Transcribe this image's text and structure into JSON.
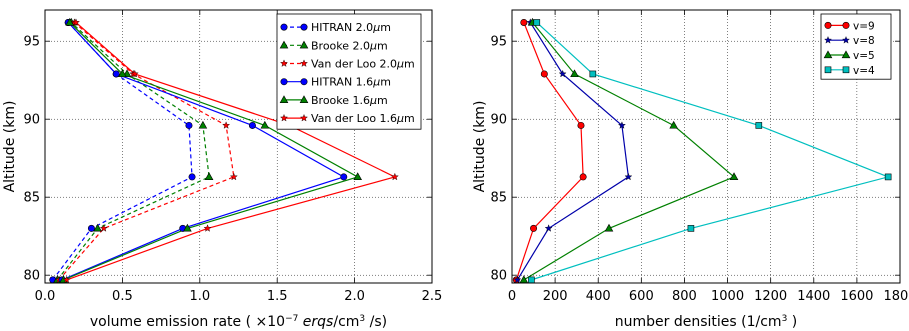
{
  "chart_data": [
    {
      "type": "line",
      "xlabel_html": "volume emission rate ( ×10<tspan baseline-shift=\"super\" font-size=\"9\">−7</tspan> <tspan font-style=\"italic\">erqs</tspan>/cm<tspan baseline-shift=\"super\" font-size=\"9\">3</tspan> /s)",
      "xlabel": "volume emission rate ( ×10−7 erqs/cm3 /s)",
      "ylabel": "Altitude (km)",
      "xlim": [
        0,
        2.5
      ],
      "ylim": [
        79.5,
        97
      ],
      "xticks": [
        0.0,
        0.5,
        1.0,
        1.5,
        2.0,
        2.5
      ],
      "xtick_labels": [
        "0.0",
        "0.5",
        "1.0",
        "1.5",
        "2.0",
        "2.5"
      ],
      "yticks": [
        80,
        85,
        90,
        95
      ],
      "ytick_labels": [
        "80",
        "85",
        "90",
        "95"
      ],
      "grid": true,
      "legend_position": "top-right",
      "series": [
        {
          "name": "HITRAN 2.0μm",
          "legend_base": "HITRAN 2.0",
          "color": "#0000ff",
          "marker": "circle",
          "dashed": true,
          "x": [
            0.05,
            0.3,
            0.95,
            0.93,
            0.46,
            0.15
          ],
          "y": [
            79.7,
            83.0,
            86.3,
            89.6,
            92.9,
            96.2
          ]
        },
        {
          "name": "Brooke 2.0μm",
          "legend_base": "Brooke 2.0",
          "color": "#008000",
          "marker": "triangle",
          "dashed": true,
          "x": [
            0.08,
            0.34,
            1.06,
            1.02,
            0.53,
            0.17
          ],
          "y": [
            79.7,
            83.0,
            86.3,
            89.6,
            92.9,
            96.2
          ]
        },
        {
          "name": "Van der Loo 2.0μm",
          "legend_base": "Van der Loo 2.0",
          "color": "#ff0000",
          "marker": "star",
          "dashed": true,
          "x": [
            0.09,
            0.38,
            1.22,
            1.17,
            0.57,
            0.19
          ],
          "y": [
            79.7,
            83.0,
            86.3,
            89.6,
            92.9,
            96.2
          ]
        },
        {
          "name": "HITRAN 1.6μm",
          "legend_base": "HITRAN 1.6",
          "color": "#0000ff",
          "marker": "circle",
          "dashed": false,
          "x": [
            0.11,
            0.89,
            1.93,
            1.34,
            0.46,
            0.15
          ],
          "y": [
            79.7,
            83.0,
            86.3,
            89.6,
            92.9,
            96.2
          ]
        },
        {
          "name": "Brooke 1.6μm",
          "legend_base": "Brooke 1.6",
          "color": "#008000",
          "marker": "triangle",
          "dashed": false,
          "x": [
            0.12,
            0.92,
            2.02,
            1.42,
            0.5,
            0.16
          ],
          "y": [
            79.7,
            83.0,
            86.3,
            89.6,
            92.9,
            96.2
          ]
        },
        {
          "name": "Van der Loo 1.6μm",
          "legend_base": "Van der Loo 1.6",
          "color": "#ff0000",
          "marker": "star",
          "dashed": false,
          "x": [
            0.14,
            1.05,
            2.26,
            1.58,
            0.58,
            0.2
          ],
          "y": [
            79.7,
            83.0,
            86.3,
            89.6,
            92.9,
            96.2
          ]
        }
      ]
    },
    {
      "type": "line",
      "xlabel_html": "number densities (1/cm<tspan baseline-shift=\"super\" font-size=\"9\">3</tspan> )",
      "xlabel": "number densities (1/cm3 )",
      "ylabel": "Altitude (km)",
      "xlim": [
        0,
        1800
      ],
      "ylim": [
        79.5,
        97
      ],
      "xticks": [
        0,
        200,
        400,
        600,
        800,
        1000,
        1200,
        1400,
        1600,
        1800
      ],
      "xtick_labels": [
        "0",
        "200",
        "400",
        "600",
        "800",
        "1000",
        "1200",
        "1400",
        "1600",
        "1800"
      ],
      "yticks": [
        80,
        85,
        90,
        95
      ],
      "ytick_labels": [
        "80",
        "85",
        "90",
        "95"
      ],
      "grid": true,
      "legend_position": "top-right",
      "series": [
        {
          "name": "v=9",
          "color": "#ff0000",
          "marker": "circle",
          "dashed": false,
          "x": [
            20,
            100,
            330,
            320,
            150,
            55
          ],
          "y": [
            79.7,
            83.0,
            86.3,
            89.6,
            92.9,
            96.2
          ]
        },
        {
          "name": "v=8",
          "color": "#0000aa",
          "marker": "star",
          "dashed": false,
          "x": [
            25,
            170,
            540,
            510,
            235,
            85
          ],
          "y": [
            79.7,
            83.0,
            86.3,
            89.6,
            92.9,
            96.2
          ]
        },
        {
          "name": "v=5",
          "color": "#008000",
          "marker": "triangle",
          "dashed": false,
          "x": [
            55,
            450,
            1030,
            750,
            290,
            95
          ],
          "y": [
            79.7,
            83.0,
            86.3,
            89.6,
            92.9,
            96.2
          ]
        },
        {
          "name": "v=4",
          "color": "#00bfbf",
          "marker": "square",
          "dashed": false,
          "x": [
            90,
            830,
            1745,
            1145,
            375,
            115
          ],
          "y": [
            79.7,
            83.0,
            86.3,
            89.6,
            92.9,
            96.2
          ]
        }
      ]
    }
  ],
  "legend_unit_html": "<tspan font-style=\"italic\">μ</tspan>m"
}
